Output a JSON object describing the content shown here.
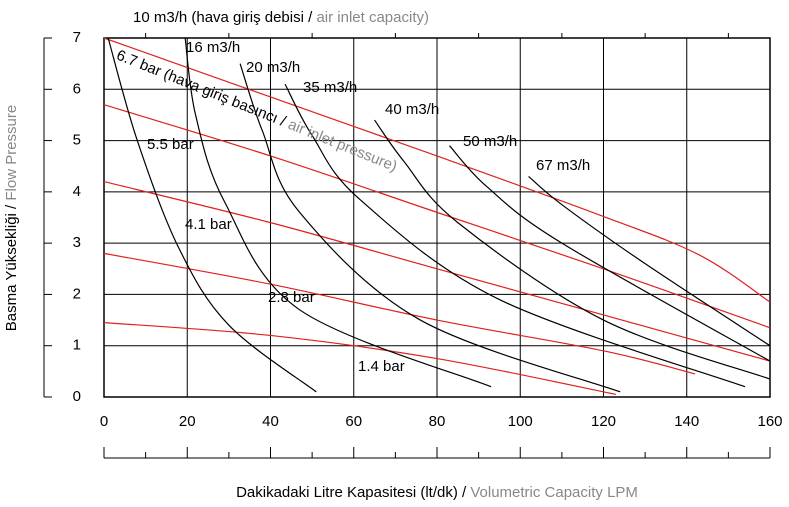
{
  "chart_data": {
    "type": "line",
    "title_annotation": " (hava giriş debisi / ",
    "title_annotation_en": "air inlet capacity)",
    "pressure_annotation": " (hava giriş basıncı / ",
    "pressure_annotation_en": "air inlet pressure)",
    "y_label": "Basma Yüksekliği / ",
    "y_label_en": "Flow Pressure",
    "x_label": "Dakikadaki Litre Kapasitesi (lt/dk) / ",
    "x_label_en": "Volumetric Capacity LPM",
    "xlim": [
      0,
      160
    ],
    "xticks": [
      0,
      20,
      40,
      60,
      80,
      100,
      120,
      140,
      160
    ],
    "ylim": [
      0,
      7
    ],
    "yticks": [
      0,
      1,
      2,
      3,
      4,
      5,
      6,
      7
    ],
    "grid": true,
    "series": [
      {
        "name": "6.7 bar",
        "color": "#e02020",
        "x": [
          0,
          40,
          80,
          119,
          143,
          160
        ],
        "values": [
          7.0,
          5.85,
          4.7,
          3.55,
          2.77,
          1.85
        ]
      },
      {
        "name": "5.5 bar",
        "color": "#e02020",
        "x": [
          0,
          40,
          80,
          120,
          160
        ],
        "values": [
          5.7,
          4.7,
          3.6,
          2.5,
          1.35
        ]
      },
      {
        "name": "4.1 bar",
        "color": "#e02020",
        "x": [
          0,
          40,
          80,
          120,
          160
        ],
        "values": [
          4.2,
          3.4,
          2.5,
          1.6,
          0.7
        ]
      },
      {
        "name": "2.8 bar",
        "color": "#e02020",
        "x": [
          0,
          40,
          80,
          120,
          142
        ],
        "values": [
          2.8,
          2.2,
          1.5,
          0.9,
          0.45
        ]
      },
      {
        "name": "1.4 bar",
        "color": "#e02020",
        "x": [
          0,
          40,
          80,
          123
        ],
        "values": [
          1.45,
          1.2,
          0.75,
          0.05
        ]
      },
      {
        "name": "10 m3/h",
        "color": "#000000",
        "x": [
          1,
          8,
          18,
          30,
          51
        ],
        "values": [
          7.0,
          5.0,
          2.9,
          1.4,
          0.1
        ]
      },
      {
        "name": "16 m3/h",
        "color": "#000000",
        "x": [
          19.5,
          22,
          29,
          47,
          93
        ],
        "values": [
          7.0,
          5.5,
          3.8,
          1.7,
          0.2
        ]
      },
      {
        "name": "20 m3/h",
        "color": "#000000",
        "x": [
          32.7,
          38,
          47,
          76,
          124
        ],
        "values": [
          6.5,
          5.2,
          3.6,
          1.5,
          0.1
        ]
      },
      {
        "name": "35 m3/h",
        "color": "#000000",
        "x": [
          43.5,
          50,
          61.5,
          95,
          154
        ],
        "values": [
          6.1,
          5.1,
          3.85,
          1.9,
          0.2
        ]
      },
      {
        "name": "40 m3/h",
        "color": "#000000",
        "x": [
          65,
          72,
          85,
          120,
          160
        ],
        "values": [
          5.4,
          4.6,
          3.4,
          1.5,
          0.35
        ]
      },
      {
        "name": "50 m3/h",
        "color": "#000000",
        "x": [
          83,
          92,
          110,
          160
        ],
        "values": [
          4.9,
          4.1,
          3.0,
          0.7
        ]
      },
      {
        "name": "67 m3/h",
        "color": "#000000",
        "x": [
          102,
          110,
          130,
          160
        ],
        "values": [
          4.3,
          3.75,
          2.6,
          1.0
        ]
      }
    ]
  }
}
